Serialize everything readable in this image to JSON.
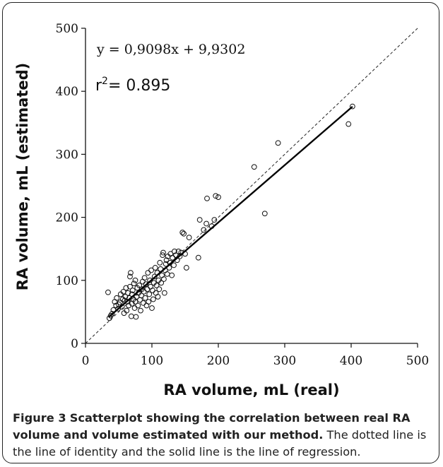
{
  "figure": {
    "caption_label": "Figure 3",
    "caption_title": "Scatterplot showing the correlation between real RA volume and volume estimated with our method.",
    "caption_text": "The dotted line is the line of identity and the solid line is the line of regression."
  },
  "chart_data": {
    "type": "scatter",
    "xlabel": "RA volume, mL (real)",
    "ylabel": "RA volume, mL (estimated)",
    "xlim": [
      0,
      500
    ],
    "ylim": [
      0,
      500
    ],
    "xticks": [
      "0",
      "100",
      "200",
      "300",
      "400",
      "500"
    ],
    "yticks": [
      "0",
      "100",
      "200",
      "300",
      "400",
      "500"
    ],
    "grid": false,
    "annotations": {
      "equation": "y = 0,9098x + 9,9302",
      "r2_prefix": "r",
      "r2_sup": "2",
      "r2_suffix": "= 0.895"
    },
    "regression": {
      "slope": 0.9098,
      "intercept": 9.9302,
      "x_range": [
        35,
        402
      ]
    },
    "identity": {
      "x_range": [
        0,
        500
      ]
    },
    "points": [
      [
        34,
        81
      ],
      [
        36,
        40
      ],
      [
        38,
        44
      ],
      [
        40,
        47
      ],
      [
        42,
        53
      ],
      [
        44,
        66
      ],
      [
        46,
        60
      ],
      [
        47,
        72
      ],
      [
        49,
        55
      ],
      [
        50,
        62
      ],
      [
        52,
        65
      ],
      [
        53,
        78
      ],
      [
        55,
        58
      ],
      [
        56,
        70
      ],
      [
        57,
        82
      ],
      [
        58,
        48
      ],
      [
        59,
        68
      ],
      [
        60,
        74
      ],
      [
        61,
        88
      ],
      [
        62,
        52
      ],
      [
        63,
        66
      ],
      [
        64,
        80
      ],
      [
        65,
        60
      ],
      [
        66,
        72
      ],
      [
        67,
        90
      ],
      [
        67,
        106
      ],
      [
        68,
        112
      ],
      [
        69,
        43
      ],
      [
        70,
        63
      ],
      [
        70,
        78
      ],
      [
        71,
        84
      ],
      [
        72,
        70
      ],
      [
        73,
        95
      ],
      [
        74,
        56
      ],
      [
        75,
        66
      ],
      [
        75,
        100
      ],
      [
        76,
        42
      ],
      [
        77,
        74
      ],
      [
        78,
        88
      ],
      [
        79,
        60
      ],
      [
        80,
        80
      ],
      [
        81,
        92
      ],
      [
        82,
        69
      ],
      [
        83,
        52
      ],
      [
        84,
        76
      ],
      [
        85,
        86
      ],
      [
        86,
        98
      ],
      [
        87,
        64
      ],
      [
        88,
        82
      ],
      [
        89,
        104
      ],
      [
        90,
        72
      ],
      [
        91,
        94
      ],
      [
        92,
        60
      ],
      [
        93,
        86
      ],
      [
        94,
        112
      ],
      [
        95,
        66
      ],
      [
        96,
        78
      ],
      [
        97,
        100
      ],
      [
        98,
        90
      ],
      [
        99,
        116
      ],
      [
        100,
        56
      ],
      [
        101,
        84
      ],
      [
        102,
        70
      ],
      [
        103,
        96
      ],
      [
        104,
        106
      ],
      [
        105,
        120
      ],
      [
        106,
        80
      ],
      [
        107,
        92
      ],
      [
        108,
        112
      ],
      [
        109,
        74
      ],
      [
        110,
        100
      ],
      [
        111,
        86
      ],
      [
        112,
        128
      ],
      [
        113,
        118
      ],
      [
        114,
        96
      ],
      [
        115,
        108
      ],
      [
        116,
        140
      ],
      [
        117,
        144
      ],
      [
        118,
        102
      ],
      [
        119,
        80
      ],
      [
        120,
        116
      ],
      [
        121,
        126
      ],
      [
        122,
        132
      ],
      [
        123,
        110
      ],
      [
        124,
        138
      ],
      [
        126,
        120
      ],
      [
        127,
        128
      ],
      [
        128,
        142
      ],
      [
        130,
        108
      ],
      [
        131,
        136
      ],
      [
        133,
        124
      ],
      [
        134,
        146
      ],
      [
        136,
        140
      ],
      [
        138,
        132
      ],
      [
        140,
        146
      ],
      [
        142,
        138
      ],
      [
        144,
        144
      ],
      [
        146,
        176
      ],
      [
        148,
        174
      ],
      [
        150,
        142
      ],
      [
        152,
        120
      ],
      [
        156,
        168
      ],
      [
        170,
        136
      ],
      [
        172,
        196
      ],
      [
        178,
        180
      ],
      [
        182,
        190
      ],
      [
        183,
        230
      ],
      [
        190,
        186
      ],
      [
        194,
        196
      ],
      [
        196,
        234
      ],
      [
        200,
        232
      ],
      [
        254,
        280
      ],
      [
        270,
        206
      ],
      [
        290,
        318
      ],
      [
        396,
        348
      ],
      [
        402,
        376
      ]
    ]
  }
}
